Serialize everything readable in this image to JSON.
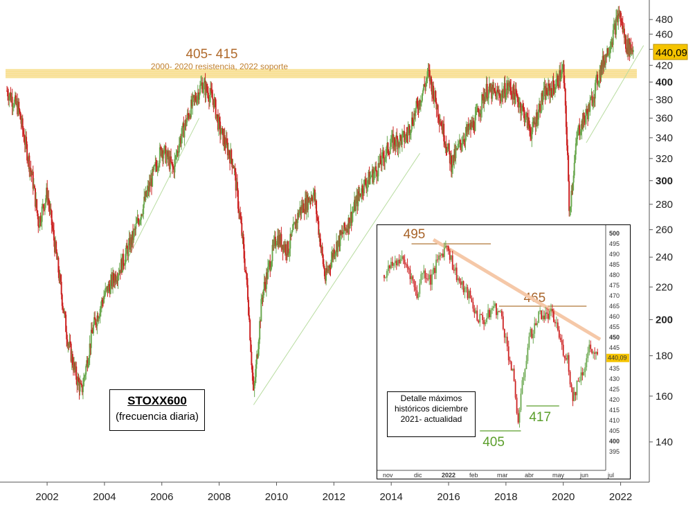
{
  "chart_data": [
    {
      "type": "candlestick",
      "title": "STOXX600",
      "subtitle": "(frecuencia diaria)",
      "y_scale": "log",
      "ylim": [
        125,
        500
      ],
      "y_ticks": [
        140,
        160,
        180,
        200,
        220,
        240,
        260,
        280,
        300,
        320,
        340,
        360,
        380,
        400,
        420,
        440,
        460,
        480
      ],
      "y_ticks_bold": [
        200,
        300,
        400
      ],
      "x_ticks": [
        "2002",
        "2004",
        "2006",
        "2008",
        "2010",
        "2012",
        "2014",
        "2016",
        "2018",
        "2020",
        "2022"
      ],
      "last_price_label": "440,09",
      "last_price": 440.09,
      "up_color": "#6aa84f",
      "down_color": "#cc2222",
      "series": [
        {
          "x": [
            2000.6,
            2001.0,
            2001.5,
            2001.7,
            2002.0,
            2002.4,
            2002.7,
            2003.0,
            2003.2,
            2003.6,
            2004.0,
            2004.6,
            2005.0,
            2005.5,
            2006.0,
            2006.4,
            2006.6,
            2007.0,
            2007.4,
            2007.8,
            2008.0,
            2008.5,
            2008.8,
            2009.0,
            2009.2,
            2009.5,
            2010.0,
            2010.4,
            2010.8,
            2011.0,
            2011.3,
            2011.7,
            2012.0,
            2012.5,
            2013.0,
            2013.5,
            2014.0,
            2014.5,
            2015.0,
            2015.3,
            2015.7,
            2016.1,
            2016.5,
            2016.9,
            2017.3,
            2017.8,
            2018.1,
            2018.5,
            2018.9,
            2019.3,
            2019.7,
            2020.0,
            2020.15,
            2020.2,
            2020.5,
            2020.9,
            2021.3,
            2021.7,
            2021.95,
            2022.2,
            2022.45
          ],
          "y": [
            390,
            370,
            300,
            265,
            290,
            230,
            190,
            170,
            162,
            195,
            215,
            235,
            255,
            290,
            330,
            310,
            335,
            370,
            398,
            380,
            350,
            315,
            255,
            215,
            160,
            215,
            255,
            245,
            275,
            280,
            290,
            225,
            245,
            265,
            295,
            310,
            335,
            340,
            380,
            410,
            360,
            315,
            340,
            355,
            390,
            385,
            395,
            375,
            345,
            385,
            395,
            415,
            325,
            272,
            345,
            370,
            415,
            455,
            490,
            445,
            440
          ]
        }
      ],
      "trendlines": [
        {
          "x": [
            2004.5,
            2007.3
          ],
          "y": [
            227,
            360
          ]
        },
        {
          "x": [
            2009.2,
            2015.0
          ],
          "y": [
            156,
            325
          ]
        },
        {
          "x": [
            2020.8,
            2022.8
          ],
          "y": [
            335,
            445
          ]
        }
      ],
      "zone": {
        "low": 405,
        "high": 415,
        "label": "405- 415",
        "note": "2000- 2020 resistencia, 2022 soporte",
        "color": "#f2c237"
      }
    },
    {
      "type": "candlestick",
      "title": "",
      "ylim": [
        390,
        502
      ],
      "y_ticks": [
        395,
        400,
        405,
        410,
        415,
        420,
        425,
        430,
        435,
        440,
        445,
        450,
        455,
        460,
        465,
        470,
        475,
        480,
        485,
        490,
        495,
        500
      ],
      "y_ticks_bold": [
        400,
        450,
        500
      ],
      "x_ticks": [
        "nov",
        "dic",
        "2022",
        "feb",
        "mar",
        "abr",
        "may",
        "jun",
        "jul"
      ],
      "x_ticks_bold": [
        "2022"
      ],
      "last_price_label": "440,09",
      "series": [
        {
          "x": [
            0,
            6,
            12,
            18,
            24,
            28,
            34,
            40,
            46,
            50,
            56,
            62,
            68,
            74,
            80,
            86,
            90,
            94,
            98,
            102,
            106,
            110,
            114,
            118,
            122,
            126,
            130,
            134,
            138,
            142,
            146,
            150,
            156
          ],
          "y": [
            480,
            485,
            488,
            483,
            470,
            482,
            478,
            488,
            495,
            485,
            475,
            470,
            460,
            458,
            465,
            460,
            445,
            432,
            410,
            432,
            450,
            455,
            462,
            460,
            461,
            456,
            445,
            440,
            420,
            430,
            435,
            445,
            440
          ]
        }
      ],
      "levels": [
        {
          "value": 495,
          "label": "495",
          "color": "#b07838"
        },
        {
          "value": 465,
          "label": "465",
          "color": "#b07838"
        },
        {
          "value": 405,
          "label": "405",
          "color": "#5a9e2a"
        },
        {
          "value": 417,
          "label": "417",
          "color": "#5a9e2a"
        }
      ],
      "note": [
        "Detalle máximos",
        "históricos diciembre",
        "2021- actualidad"
      ]
    }
  ]
}
